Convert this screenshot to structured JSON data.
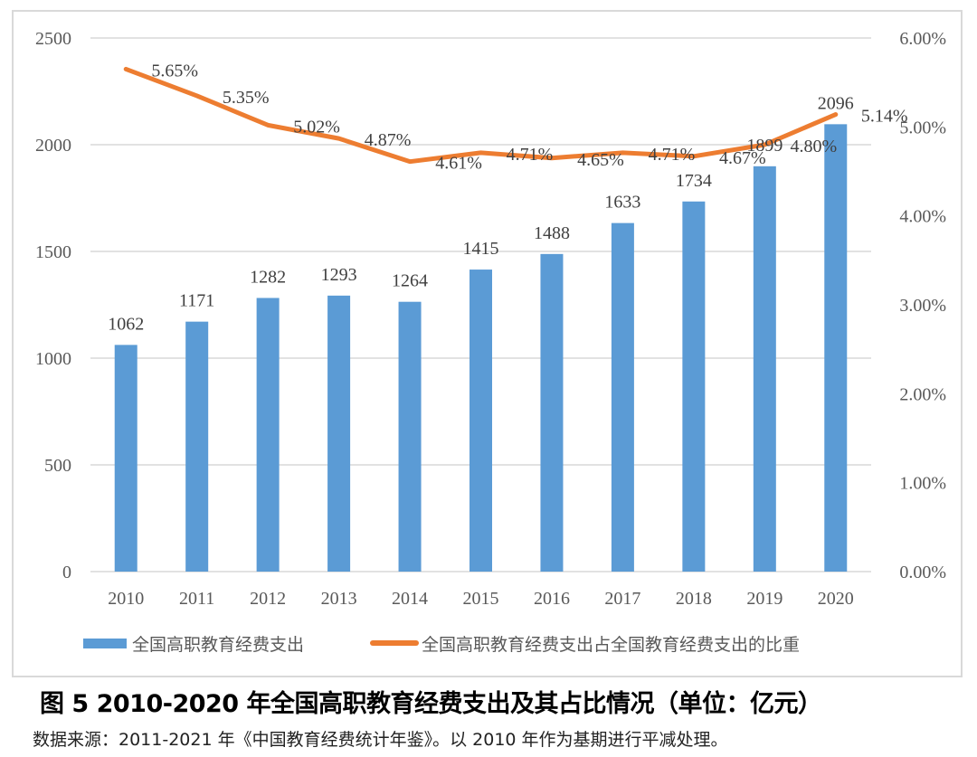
{
  "chart_data": {
    "type": "bar+line",
    "categories": [
      "2010",
      "2011",
      "2012",
      "2013",
      "2014",
      "2015",
      "2016",
      "2017",
      "2018",
      "2019",
      "2020"
    ],
    "series": [
      {
        "name": "全国高职教育经费支出",
        "type": "bar",
        "axis": "left",
        "color": "#5B9BD5",
        "values": [
          1062,
          1171,
          1282,
          1293,
          1264,
          1415,
          1488,
          1633,
          1734,
          1899,
          2096
        ],
        "labels": [
          "1062",
          "1171",
          "1282",
          "1293",
          "1264",
          "1415",
          "1488",
          "1633",
          "1734",
          "1899",
          "2096"
        ]
      },
      {
        "name": "全国高职教育经费支出占全国教育经费支出的比重",
        "type": "line",
        "axis": "right",
        "color": "#ED7D31",
        "values": [
          5.65,
          5.35,
          5.02,
          4.87,
          4.61,
          4.71,
          4.65,
          4.71,
          4.67,
          4.8,
          5.14
        ],
        "labels": [
          "5.65%",
          "5.35%",
          "5.02%",
          "4.87%",
          "4.61%",
          "4.71%",
          "4.65%",
          "4.71%",
          "4.67%",
          "4.80%",
          "5.14%"
        ]
      }
    ],
    "y_left": {
      "lim": [
        0,
        2500
      ],
      "ticks": [
        "0",
        "500",
        "1000",
        "1500",
        "2000",
        "2500"
      ]
    },
    "y_right": {
      "lim": [
        0,
        6
      ],
      "ticks": [
        "0.00%",
        "1.00%",
        "2.00%",
        "3.00%",
        "4.00%",
        "5.00%",
        "6.00%"
      ]
    },
    "grid": true,
    "legend_position": "bottom"
  },
  "caption": "图 5 2010-2020 年全国高职教育经费支出及其占比情况（单位：亿元）",
  "source": "数据来源：2011-2021 年《中国教育经费统计年鉴》。以 2010 年作为基期进行平减处理。"
}
